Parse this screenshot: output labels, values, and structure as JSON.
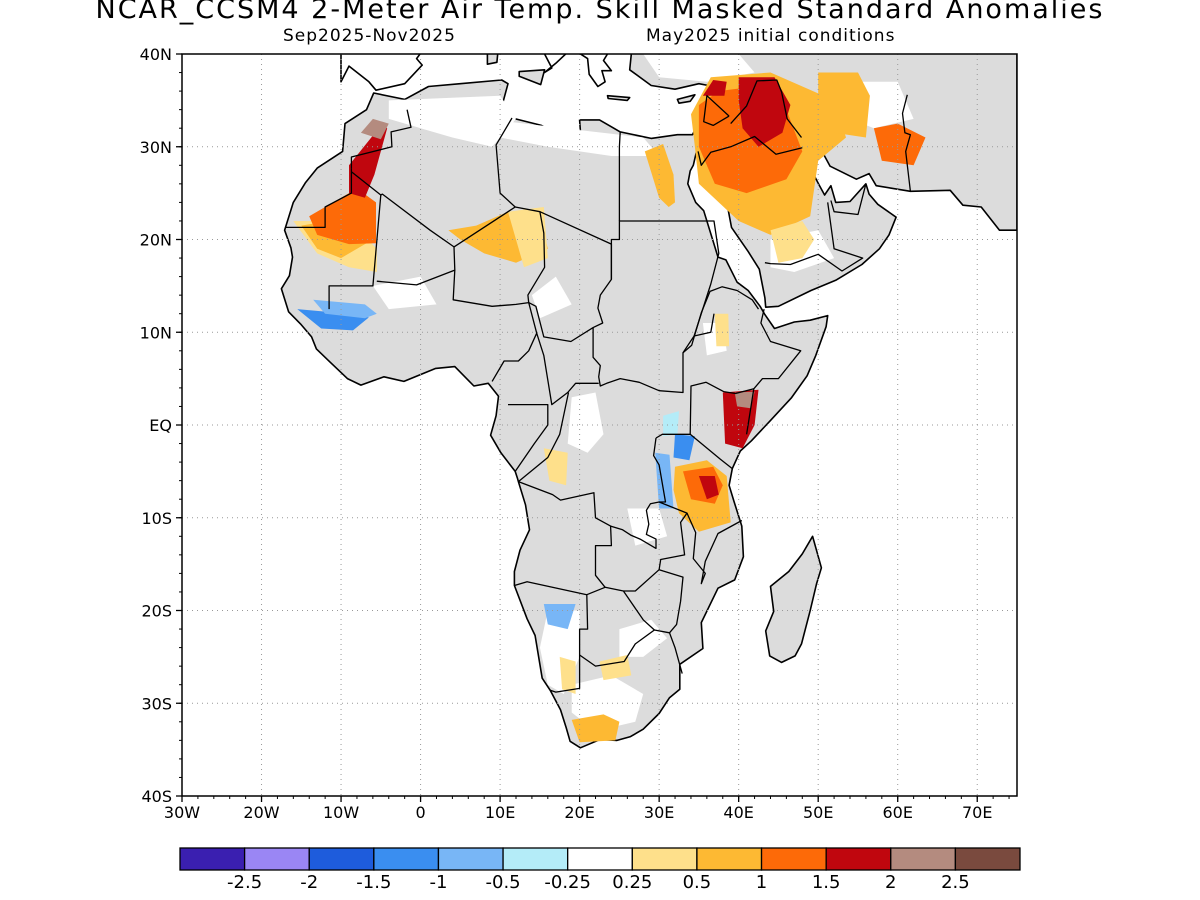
{
  "header": {
    "title": "NCAR_CCSM4 2-Meter Air Temp. Skill Masked Standard Anomalies",
    "period": "Sep2025-Nov2025",
    "initial_conditions": "May2025 initial conditions"
  },
  "map": {
    "projection": "lat-lon",
    "lon_range": [
      -30,
      75
    ],
    "lat_range": [
      -40,
      40
    ],
    "grid": "dotted",
    "masked_color": "#dcdcdc",
    "land_outline_color": "#000000",
    "y_ticks": [
      "40N",
      "30N",
      "20N",
      "10N",
      "EQ",
      "10S",
      "20S",
      "30S",
      "40S"
    ],
    "x_ticks": [
      "30W",
      "20W",
      "10W",
      "0",
      "10E",
      "20E",
      "30E",
      "40E",
      "50E",
      "60E",
      "70E"
    ]
  },
  "colorbar": {
    "colors": [
      "#3a1fb0",
      "#9a86f4",
      "#1e5cdc",
      "#3a8ef0",
      "#78b6f6",
      "#b4ecf8",
      "#ffffff",
      "#fee08b",
      "#fdb933",
      "#fd6a08",
      "#c0060e",
      "#b48b7f",
      "#7a4a3e"
    ],
    "labels": [
      "-2.5",
      "-2",
      "-1.5",
      "-1",
      "-0.5",
      "-0.25",
      "0.25",
      "0.5",
      "1",
      "1.5",
      "2",
      "2.5"
    ]
  }
}
